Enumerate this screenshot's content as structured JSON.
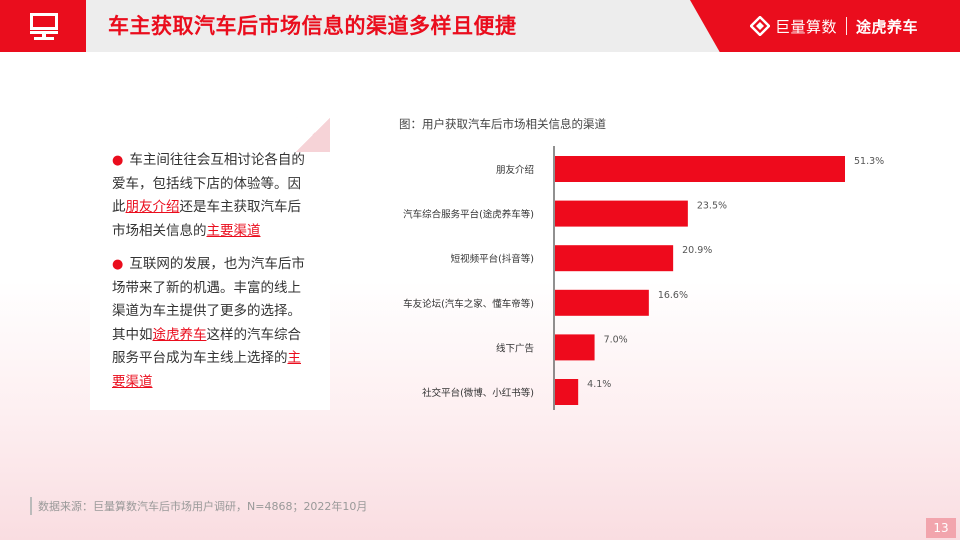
{
  "header": {
    "title": "车主获取汽车后市场信息的渠道多样且便捷",
    "brand_primary": "巨量算数",
    "brand_secondary": "途虎养车",
    "accent_color": "#ea0d1d"
  },
  "card": {
    "para1": {
      "bullet": "●",
      "before": "车主间往往会互相讨论各自的爱车，包括线下店的体验等。因此",
      "highlight1": "朋友介绍",
      "middle": "还是车主获取汽车后市场相关信息的",
      "highlight2": "主要渠道"
    },
    "para2": {
      "bullet": "●",
      "before": "互联网的发展，也为汽车后市场带来了新的机遇。丰富的线上渠道为车主提供了更多的选择。其中如",
      "highlight1": "途虎养车",
      "middle": "这样的汽车综合服务平台成为车主线上选择的",
      "highlight2": "主要渠道"
    }
  },
  "chart_data": {
    "type": "bar",
    "orientation": "horizontal",
    "title": "图：用户获取汽车后市场相关信息的渠道",
    "categories": [
      "朋友介绍",
      "汽车综合服务平台(途虎养车等)",
      "短视频平台(抖音等)",
      "车友论坛(汽车之家、懂车帝等)",
      "线下广告",
      "社交平台(微博、小红书等)"
    ],
    "values": [
      51.3,
      23.5,
      20.9,
      16.6,
      7.0,
      4.1
    ],
    "value_labels": [
      "51.3%",
      "23.5%",
      "20.9%",
      "16.6%",
      "7.0%",
      "4.1%"
    ],
    "xlim": [
      0,
      51.3
    ],
    "grid": false,
    "legend": "none",
    "bar_color": "#ee0a1c"
  },
  "footer": {
    "source": "数据来源：巨量算数汽车后市场用户调研，N=4868；2022年10月",
    "page_number": "13"
  }
}
